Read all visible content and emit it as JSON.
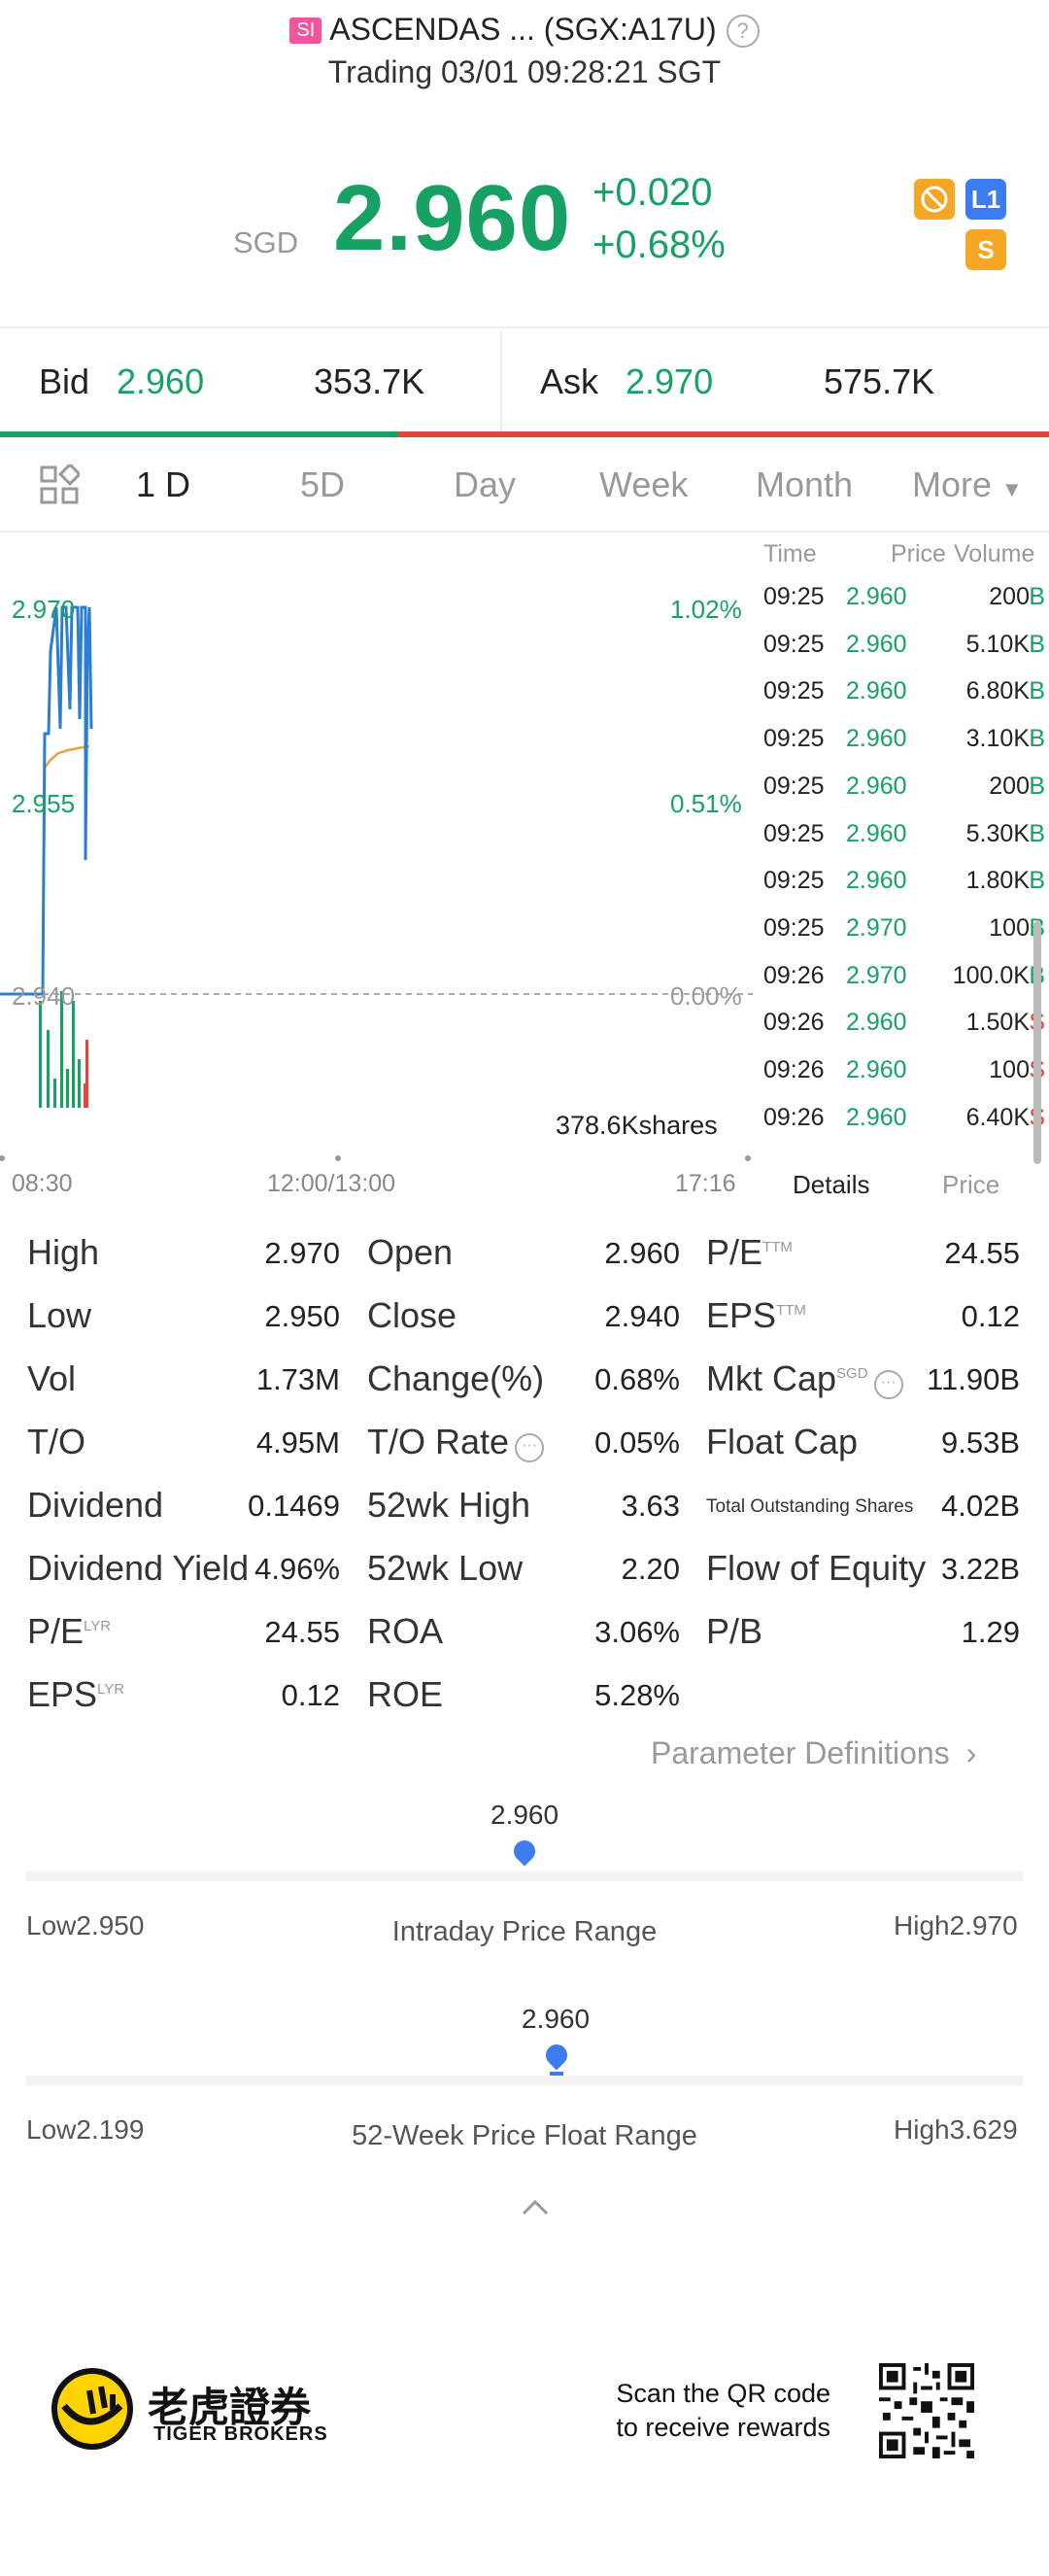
{
  "header": {
    "market_tag": "SI",
    "title": "ASCENDAS ... (SGX:A17U)",
    "status": "Trading 03/01 09:28:21 SGT"
  },
  "quote": {
    "currency": "SGD",
    "price": "2.960",
    "change": "+0.020",
    "change_pct": "+0.68%",
    "badges": [
      {
        "icon": "no-short-icon",
        "text": "⊘",
        "color": "#f5a623"
      },
      {
        "icon": "level1-icon",
        "text": "L1",
        "color": "#3d7bf0"
      },
      {
        "icon": "dollar-icon",
        "text": "S",
        "color": "#f5a623"
      }
    ]
  },
  "bid_ask": {
    "bid_label": "Bid",
    "bid_price": "2.960",
    "bid_size": "353.7K",
    "ask_label": "Ask",
    "ask_price": "2.970",
    "ask_size": "575.7K",
    "bid_ratio": 0.38
  },
  "tabs": [
    "1 D",
    "5D",
    "Day",
    "Week",
    "Month",
    "More"
  ],
  "active_tab": 0,
  "chart": {
    "y_labels": {
      "top": "2.970",
      "mid": "2.955",
      "base": "2.940"
    },
    "pct_labels": {
      "top": "1.02%",
      "mid": "0.51%",
      "base": "0.00%"
    },
    "volume_label": "378.6Kshares",
    "x_labels": [
      "08:30",
      "12:00/13:00",
      "17:16"
    ],
    "colors": {
      "price": "#2b7fd0",
      "avg": "#e7a33e",
      "up": "#17a263",
      "down": "#e0473d"
    }
  },
  "trades": {
    "headers": {
      "time": "Time",
      "price": "Price",
      "volume": "Volume"
    },
    "rows": [
      {
        "time": "09:25",
        "price": "2.960",
        "volume": "200",
        "side": "B"
      },
      {
        "time": "09:25",
        "price": "2.960",
        "volume": "5.10K",
        "side": "B"
      },
      {
        "time": "09:25",
        "price": "2.960",
        "volume": "6.80K",
        "side": "B"
      },
      {
        "time": "09:25",
        "price": "2.960",
        "volume": "3.10K",
        "side": "B"
      },
      {
        "time": "09:25",
        "price": "2.960",
        "volume": "200",
        "side": "B"
      },
      {
        "time": "09:25",
        "price": "2.960",
        "volume": "5.30K",
        "side": "B"
      },
      {
        "time": "09:25",
        "price": "2.960",
        "volume": "1.80K",
        "side": "B"
      },
      {
        "time": "09:25",
        "price": "2.970",
        "volume": "100",
        "side": "B"
      },
      {
        "time": "09:26",
        "price": "2.970",
        "volume": "100.0K",
        "side": "B"
      },
      {
        "time": "09:26",
        "price": "2.960",
        "volume": "1.50K",
        "side": "S"
      },
      {
        "time": "09:26",
        "price": "2.960",
        "volume": "100",
        "side": "S"
      },
      {
        "time": "09:26",
        "price": "2.960",
        "volume": "6.40K",
        "side": "S"
      }
    ],
    "tab_details": "Details",
    "tab_price": "Price"
  },
  "stats": {
    "col1": [
      {
        "label": "High",
        "sup": "",
        "value": "2.970"
      },
      {
        "label": "Low",
        "sup": "",
        "value": "2.950"
      },
      {
        "label": "Vol",
        "sup": "",
        "value": "1.73M"
      },
      {
        "label": "T/O",
        "sup": "",
        "value": "4.95M"
      },
      {
        "label": "Dividend",
        "sup": "",
        "value": "0.1469"
      },
      {
        "label": "Dividend Yield",
        "sup": "",
        "value": "4.96%"
      },
      {
        "label": "P/E",
        "sup": "LYR",
        "value": "24.55"
      },
      {
        "label": "EPS",
        "sup": "LYR",
        "value": "0.12"
      }
    ],
    "col2": [
      {
        "label": "Open",
        "sup": "",
        "value": "2.960"
      },
      {
        "label": "Close",
        "sup": "",
        "value": "2.940"
      },
      {
        "label": "Change(%)",
        "sup": "",
        "value": "0.68%"
      },
      {
        "label": "T/O Rate",
        "sup": "",
        "value": "0.05%"
      },
      {
        "label": "52wk High",
        "sup": "",
        "value": "3.63"
      },
      {
        "label": "52wk Low",
        "sup": "",
        "value": "2.20"
      },
      {
        "label": "ROA",
        "sup": "",
        "value": "3.06%"
      },
      {
        "label": "ROE",
        "sup": "",
        "value": "5.28%"
      }
    ],
    "col3": [
      {
        "label": "P/E",
        "sup": "TTM",
        "value": "24.55"
      },
      {
        "label": "EPS",
        "sup": "TTM",
        "value": "0.12"
      },
      {
        "label": "Mkt Cap",
        "sup": "SGD",
        "value": "11.90B"
      },
      {
        "label": "Float Cap",
        "sup": "",
        "value": "9.53B"
      },
      {
        "label": "Total Outstanding Shares",
        "sup": "",
        "value": "4.02B"
      },
      {
        "label": "Flow of Equity",
        "sup": "",
        "value": "3.22B"
      },
      {
        "label": "P/B",
        "sup": "",
        "value": "1.29"
      }
    ],
    "param_link": "Parameter Definitions"
  },
  "intraday_range": {
    "current": "2.960",
    "title": "Intraday Price Range",
    "low": "Low2.950",
    "high": "High2.970",
    "position": 0.5
  },
  "week52_range": {
    "current": "2.960",
    "title": "52-Week Price Float Range",
    "low": "Low2.199",
    "high": "High3.629",
    "position": 0.53
  },
  "footer": {
    "brand_cn": "老虎證券",
    "brand_en": "TIGER BROKERS",
    "scan_line1": "Scan the QR code",
    "scan_line2": "to receive rewards"
  }
}
